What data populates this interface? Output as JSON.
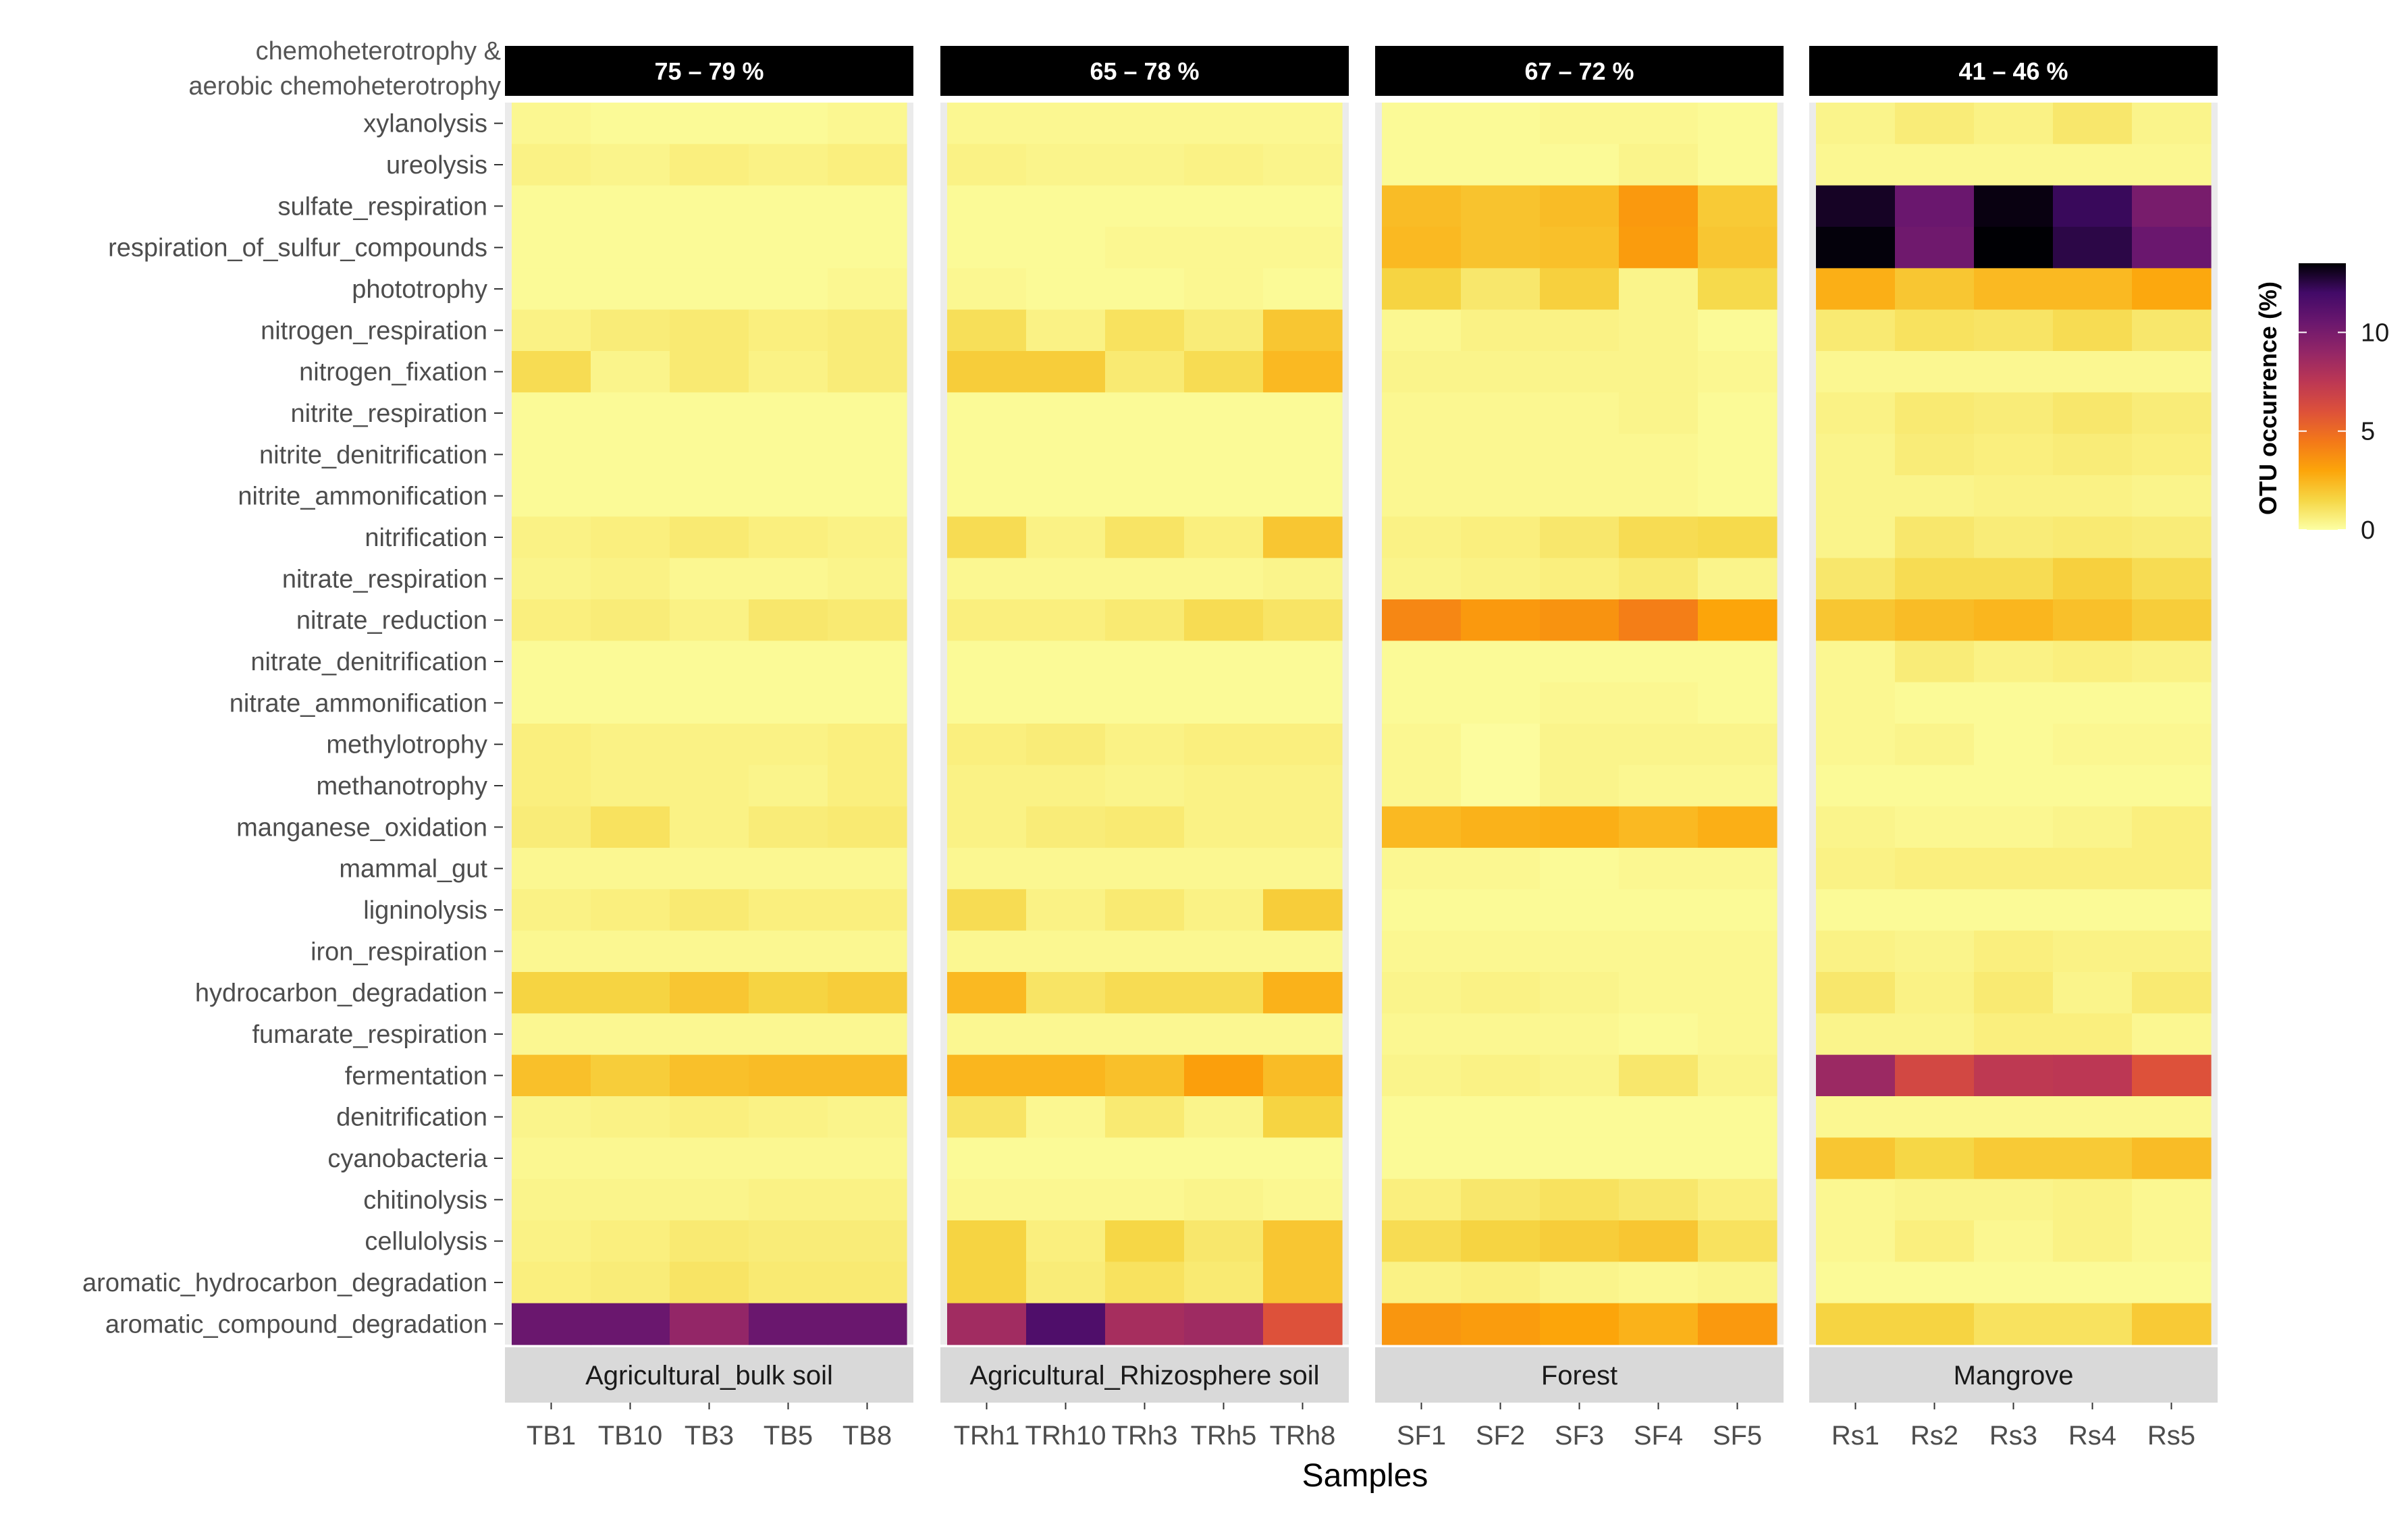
{
  "chart_data": {
    "type": "heatmap",
    "xlabel": "Samples",
    "ylabel": "",
    "chemo_label": [
      "chemoheterotrophy &",
      "aerobic chemoheterotrophy"
    ],
    "legend": {
      "title": "OTU occurrence (%)",
      "ticks": [
        0,
        5,
        10
      ],
      "range": [
        0,
        13.5
      ],
      "position": "right"
    },
    "colors": {
      "scale": [
        "#FCFFA4",
        "#F6D746",
        "#FCA50A",
        "#F37819",
        "#DD513A",
        "#BC3754",
        "#932667",
        "#6A176E",
        "#420A68",
        "#000004"
      ]
    },
    "functions": [
      "xylanolysis",
      "ureolysis",
      "sulfate_respiration",
      "respiration_of_sulfur_compounds",
      "phototrophy",
      "nitrogen_respiration",
      "nitrogen_fixation",
      "nitrite_respiration",
      "nitrite_denitrification",
      "nitrite_ammonification",
      "nitrification",
      "nitrate_respiration",
      "nitrate_reduction",
      "nitrate_denitrification",
      "nitrate_ammonification",
      "methylotrophy",
      "methanotrophy",
      "manganese_oxidation",
      "mammal_gut",
      "ligninolysis",
      "iron_respiration",
      "hydrocarbon_degradation",
      "fumarate_respiration",
      "fermentation",
      "denitrification",
      "cyanobacteria",
      "chitinolysis",
      "cellulolysis",
      "aromatic_hydrocarbon_degradation",
      "aromatic_compound_degradation"
    ],
    "panels": [
      {
        "name": "Agricultural_bulk soil",
        "chemo_range": "75 – 79 %",
        "samples": [
          "TB1",
          "TB10",
          "TB3",
          "TB5",
          "TB8"
        ],
        "values": [
          [
            0.3,
            0.2,
            0.2,
            0.2,
            0.3
          ],
          [
            0.5,
            0.4,
            0.6,
            0.5,
            0.6
          ],
          [
            0.2,
            0.2,
            0.2,
            0.2,
            0.2
          ],
          [
            0.2,
            0.2,
            0.2,
            0.2,
            0.2
          ],
          [
            0.2,
            0.2,
            0.2,
            0.2,
            0.3
          ],
          [
            0.5,
            0.7,
            0.8,
            0.6,
            0.7
          ],
          [
            1.3,
            0.4,
            0.8,
            0.5,
            0.7
          ],
          [
            0.2,
            0.2,
            0.2,
            0.2,
            0.2
          ],
          [
            0.2,
            0.2,
            0.2,
            0.2,
            0.2
          ],
          [
            0.2,
            0.2,
            0.2,
            0.2,
            0.2
          ],
          [
            0.5,
            0.6,
            0.8,
            0.6,
            0.5
          ],
          [
            0.4,
            0.5,
            0.3,
            0.3,
            0.4
          ],
          [
            0.6,
            0.7,
            0.5,
            0.9,
            0.8
          ],
          [
            0.2,
            0.2,
            0.2,
            0.2,
            0.2
          ],
          [
            0.2,
            0.2,
            0.2,
            0.2,
            0.2
          ],
          [
            0.6,
            0.5,
            0.5,
            0.5,
            0.6
          ],
          [
            0.6,
            0.5,
            0.5,
            0.4,
            0.6
          ],
          [
            0.7,
            1.1,
            0.5,
            0.7,
            0.8
          ],
          [
            0.3,
            0.3,
            0.3,
            0.3,
            0.3
          ],
          [
            0.5,
            0.6,
            0.8,
            0.6,
            0.6
          ],
          [
            0.3,
            0.3,
            0.3,
            0.3,
            0.3
          ],
          [
            1.6,
            1.6,
            2.0,
            1.6,
            1.8
          ],
          [
            0.3,
            0.3,
            0.3,
            0.3,
            0.3
          ],
          [
            2.2,
            1.8,
            2.2,
            2.3,
            2.3
          ],
          [
            0.4,
            0.5,
            0.6,
            0.5,
            0.4
          ],
          [
            0.3,
            0.3,
            0.3,
            0.3,
            0.3
          ],
          [
            0.4,
            0.4,
            0.4,
            0.5,
            0.5
          ],
          [
            0.5,
            0.6,
            0.8,
            0.7,
            0.7
          ],
          [
            0.6,
            0.7,
            1.0,
            0.8,
            0.8
          ],
          [
            10.5,
            10.5,
            9.0,
            10.5,
            10.5
          ]
        ]
      },
      {
        "name": "Agricultural_Rhizosphere soil",
        "chemo_range": "65 – 78 %",
        "samples": [
          "TRh1",
          "TRh10",
          "TRh3",
          "TRh5",
          "TRh8"
        ],
        "values": [
          [
            0.3,
            0.3,
            0.3,
            0.3,
            0.3
          ],
          [
            0.5,
            0.4,
            0.4,
            0.5,
            0.4
          ],
          [
            0.2,
            0.2,
            0.2,
            0.2,
            0.2
          ],
          [
            0.2,
            0.2,
            0.3,
            0.3,
            0.3
          ],
          [
            0.3,
            0.2,
            0.2,
            0.3,
            0.2
          ],
          [
            1.2,
            0.5,
            1.1,
            0.7,
            2.0
          ],
          [
            1.8,
            1.8,
            0.8,
            1.3,
            2.4
          ],
          [
            0.2,
            0.2,
            0.2,
            0.2,
            0.2
          ],
          [
            0.2,
            0.2,
            0.2,
            0.2,
            0.2
          ],
          [
            0.2,
            0.2,
            0.2,
            0.2,
            0.2
          ],
          [
            1.3,
            0.5,
            1.0,
            0.6,
            2.0
          ],
          [
            0.3,
            0.3,
            0.3,
            0.3,
            0.4
          ],
          [
            0.6,
            0.6,
            0.8,
            1.3,
            1.0
          ],
          [
            0.2,
            0.2,
            0.2,
            0.2,
            0.2
          ],
          [
            0.2,
            0.2,
            0.2,
            0.2,
            0.2
          ],
          [
            0.6,
            0.7,
            0.5,
            0.6,
            0.6
          ],
          [
            0.5,
            0.5,
            0.4,
            0.5,
            0.5
          ],
          [
            0.5,
            0.7,
            0.8,
            0.5,
            0.5
          ],
          [
            0.3,
            0.3,
            0.3,
            0.3,
            0.3
          ],
          [
            1.3,
            0.5,
            0.8,
            0.5,
            1.8
          ],
          [
            0.3,
            0.3,
            0.3,
            0.3,
            0.3
          ],
          [
            2.4,
            1.0,
            1.3,
            1.3,
            2.6
          ],
          [
            0.3,
            0.3,
            0.3,
            0.3,
            0.3
          ],
          [
            2.5,
            2.5,
            2.2,
            3.2,
            2.3
          ],
          [
            1.0,
            0.3,
            0.8,
            0.4,
            1.6
          ],
          [
            0.2,
            0.2,
            0.2,
            0.2,
            0.2
          ],
          [
            0.3,
            0.3,
            0.3,
            0.4,
            0.3
          ],
          [
            1.6,
            0.6,
            1.5,
            0.9,
            2.0
          ],
          [
            1.6,
            0.7,
            1.1,
            0.8,
            2.0
          ],
          [
            8.5,
            11.5,
            8.3,
            8.6,
            6.0
          ]
        ]
      },
      {
        "name": "Forest",
        "chemo_range": "67 – 72 %",
        "samples": [
          "SF1",
          "SF2",
          "SF3",
          "SF4",
          "SF5"
        ],
        "values": [
          [
            0.2,
            0.2,
            0.3,
            0.3,
            0.2
          ],
          [
            0.2,
            0.2,
            0.2,
            0.4,
            0.2
          ],
          [
            2.3,
            2.1,
            2.3,
            3.4,
            1.9
          ],
          [
            2.4,
            2.1,
            2.2,
            3.3,
            2.0
          ],
          [
            1.6,
            0.9,
            1.7,
            0.4,
            1.4
          ],
          [
            0.3,
            0.5,
            0.5,
            0.4,
            0.2
          ],
          [
            0.4,
            0.4,
            0.4,
            0.4,
            0.3
          ],
          [
            0.3,
            0.3,
            0.3,
            0.4,
            0.2
          ],
          [
            0.3,
            0.3,
            0.3,
            0.3,
            0.2
          ],
          [
            0.3,
            0.3,
            0.3,
            0.3,
            0.2
          ],
          [
            0.5,
            0.6,
            0.9,
            1.3,
            1.4
          ],
          [
            0.4,
            0.5,
            0.6,
            0.8,
            0.4
          ],
          [
            4.0,
            3.4,
            3.6,
            4.3,
            3.0
          ],
          [
            0.2,
            0.2,
            0.2,
            0.2,
            0.2
          ],
          [
            0.2,
            0.2,
            0.3,
            0.3,
            0.2
          ],
          [
            0.3,
            0.1,
            0.4,
            0.4,
            0.4
          ],
          [
            0.3,
            0.1,
            0.4,
            0.3,
            0.3
          ],
          [
            2.4,
            2.6,
            2.7,
            2.4,
            2.7
          ],
          [
            0.3,
            0.3,
            0.2,
            0.3,
            0.3
          ],
          [
            0.2,
            0.2,
            0.2,
            0.2,
            0.2
          ],
          [
            0.3,
            0.3,
            0.3,
            0.3,
            0.3
          ],
          [
            0.4,
            0.5,
            0.4,
            0.3,
            0.3
          ],
          [
            0.3,
            0.3,
            0.3,
            0.2,
            0.3
          ],
          [
            0.4,
            0.5,
            0.4,
            0.9,
            0.4
          ],
          [
            0.2,
            0.2,
            0.2,
            0.2,
            0.2
          ],
          [
            0.2,
            0.2,
            0.2,
            0.2,
            0.2
          ],
          [
            0.6,
            0.9,
            1.1,
            0.9,
            0.6
          ],
          [
            1.3,
            1.6,
            1.8,
            2.0,
            1.1
          ],
          [
            0.5,
            0.6,
            0.4,
            0.3,
            0.4
          ],
          [
            3.5,
            3.3,
            3.0,
            2.6,
            3.4
          ]
        ]
      },
      {
        "name": "Mangrove",
        "chemo_range": "41 – 46 %",
        "samples": [
          "Rs1",
          "Rs2",
          "Rs3",
          "Rs4",
          "Rs5"
        ],
        "values": [
          [
            0.4,
            0.7,
            0.5,
            0.9,
            0.4
          ],
          [
            0.3,
            0.3,
            0.3,
            0.3,
            0.3
          ],
          [
            13.0,
            10.5,
            13.3,
            12.2,
            10.0
          ],
          [
            13.4,
            10.3,
            13.5,
            12.5,
            10.5
          ],
          [
            2.7,
            2.0,
            2.4,
            2.4,
            2.9
          ],
          [
            0.8,
            1.1,
            1.0,
            1.3,
            0.9
          ],
          [
            0.3,
            0.3,
            0.3,
            0.3,
            0.3
          ],
          [
            0.5,
            0.8,
            0.7,
            0.9,
            0.7
          ],
          [
            0.4,
            0.7,
            0.6,
            0.7,
            0.6
          ],
          [
            0.4,
            0.4,
            0.5,
            0.5,
            0.4
          ],
          [
            0.4,
            0.9,
            0.7,
            0.8,
            0.7
          ],
          [
            0.9,
            1.3,
            1.3,
            1.7,
            1.3
          ],
          [
            2.0,
            2.3,
            2.5,
            2.2,
            1.8
          ],
          [
            0.3,
            0.7,
            0.5,
            0.6,
            0.5
          ],
          [
            0.3,
            0.2,
            0.2,
            0.2,
            0.2
          ],
          [
            0.3,
            0.4,
            0.2,
            0.3,
            0.3
          ],
          [
            0.2,
            0.2,
            0.2,
            0.2,
            0.2
          ],
          [
            0.4,
            0.3,
            0.3,
            0.4,
            0.6
          ],
          [
            0.5,
            0.6,
            0.6,
            0.6,
            0.6
          ],
          [
            0.2,
            0.2,
            0.2,
            0.2,
            0.2
          ],
          [
            0.5,
            0.4,
            0.6,
            0.5,
            0.5
          ],
          [
            0.9,
            0.5,
            0.8,
            0.4,
            0.8
          ],
          [
            0.4,
            0.4,
            0.6,
            0.6,
            0.3
          ],
          [
            8.7,
            6.5,
            7.4,
            7.5,
            6.0
          ],
          [
            0.3,
            0.3,
            0.3,
            0.3,
            0.3
          ],
          [
            2.0,
            1.5,
            1.9,
            1.9,
            2.3
          ],
          [
            0.3,
            0.4,
            0.4,
            0.5,
            0.3
          ],
          [
            0.3,
            0.6,
            0.3,
            0.5,
            0.3
          ],
          [
            0.2,
            0.2,
            0.2,
            0.2,
            0.2
          ],
          [
            1.6,
            1.6,
            1.1,
            1.1,
            1.9
          ]
        ]
      }
    ]
  }
}
